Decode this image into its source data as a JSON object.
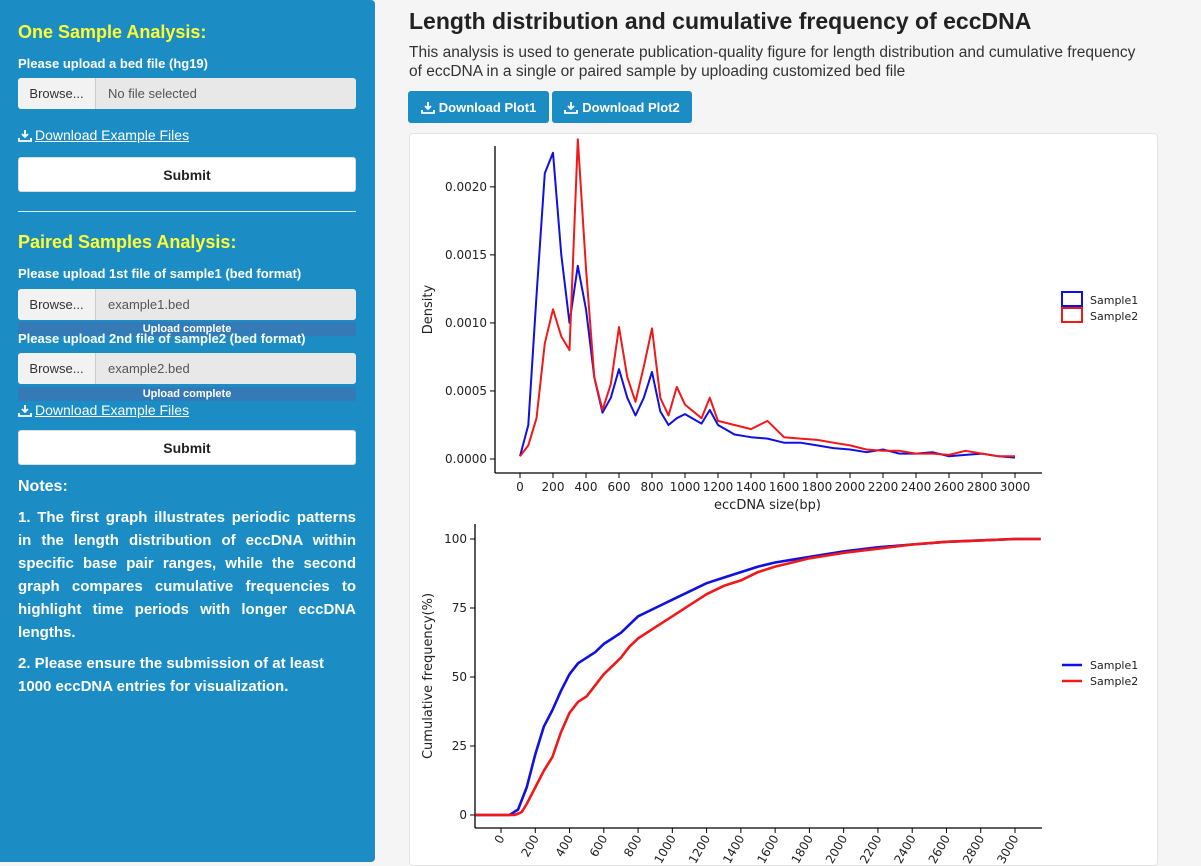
{
  "sidebar": {
    "one_sample": {
      "title": "One Sample Analysis:",
      "upload_label": "Please upload a bed file (hg19)",
      "browse_label": "Browse...",
      "file_placeholder": "No file selected",
      "download_example": "Download Example Files",
      "submit_label": "Submit"
    },
    "paired": {
      "title": "Paired Samples Analysis:",
      "upload1_label": "Please upload 1st file of sample1 (bed format)",
      "browse1_label": "Browse...",
      "file1_value": "example1.bed",
      "progress1": "Upload complete",
      "upload2_label": "Please upload 2nd file of sample2 (bed format)",
      "browse2_label": "Browse...",
      "file2_value": "example2.bed",
      "progress2": "Upload complete",
      "download_example": "Download Example Files",
      "submit_label": "Submit"
    },
    "notes": {
      "title": "Notes:",
      "note1": "1. The first graph illustrates periodic patterns in the length distribution of eccDNA within specific base pair ranges, while the second graph compares cumulative frequencies to highlight time periods with longer eccDNA lengths.",
      "note2": "2. Please ensure the submission of at least 1000 eccDNA entries for visualization."
    }
  },
  "main": {
    "title": "Length distribution and cumulative frequency of eccDNA",
    "description": "This analysis is used to generate publication-quality figure for length distribution and cumulative frequency of eccDNA in a single or paired sample by uploading customized bed file",
    "download_plot1": "Download Plot1",
    "download_plot2": "Download Plot2"
  },
  "colors": {
    "sample1": "#1010e0",
    "sample2": "#f01818",
    "sidebar": "#1b8dc4",
    "section_title": "#ffff33"
  },
  "chart_data": [
    {
      "type": "line",
      "xlabel": "eccDNA size(bp)",
      "ylabel": "Density",
      "xlim": [
        0,
        3000
      ],
      "ylim": [
        0,
        0.0023
      ],
      "x_ticks": [
        "0",
        "200",
        "400",
        "600",
        "800",
        "1000",
        "1200",
        "1400",
        "1600",
        "1800",
        "2000",
        "2200",
        "2400",
        "2600",
        "2800",
        "3000"
      ],
      "y_ticks": [
        "0.0000",
        "0.0005",
        "0.0010",
        "0.0015",
        "0.0020"
      ],
      "legend_style": "box",
      "legend_position": "right",
      "series": [
        {
          "name": "Sample1",
          "x": [
            0,
            50,
            100,
            150,
            200,
            250,
            300,
            350,
            400,
            450,
            500,
            550,
            600,
            650,
            700,
            750,
            800,
            850,
            900,
            950,
            1000,
            1100,
            1150,
            1200,
            1300,
            1400,
            1500,
            1600,
            1700,
            1800,
            1900,
            2000,
            2100,
            2200,
            2300,
            2400,
            2500,
            2600,
            2700,
            2800,
            2900,
            3000
          ],
          "y": [
            2e-05,
            0.00025,
            0.0012,
            0.0021,
            0.00225,
            0.0015,
            0.001,
            0.00142,
            0.0011,
            0.0006,
            0.00034,
            0.00045,
            0.00066,
            0.00045,
            0.00032,
            0.00045,
            0.00064,
            0.00035,
            0.00025,
            0.0003,
            0.00033,
            0.00026,
            0.00036,
            0.00025,
            0.00018,
            0.00016,
            0.00015,
            0.00012,
            0.00012,
            0.0001,
            8e-05,
            7e-05,
            5e-05,
            7e-05,
            4e-05,
            4e-05,
            5e-05,
            2e-05,
            3e-05,
            4e-05,
            2e-05,
            1e-05
          ]
        },
        {
          "name": "Sample2",
          "x": [
            0,
            50,
            100,
            150,
            200,
            250,
            300,
            350,
            400,
            450,
            500,
            550,
            600,
            650,
            700,
            750,
            800,
            850,
            900,
            950,
            1000,
            1100,
            1150,
            1200,
            1300,
            1400,
            1500,
            1600,
            1700,
            1800,
            1900,
            2000,
            2100,
            2200,
            2300,
            2400,
            2500,
            2600,
            2700,
            2800,
            2900,
            3000
          ],
          "y": [
            2e-05,
            0.0001,
            0.0003,
            0.00085,
            0.0011,
            0.0009,
            0.0008,
            0.00235,
            0.0014,
            0.0006,
            0.00036,
            0.00055,
            0.00097,
            0.0006,
            0.00042,
            0.00068,
            0.00096,
            0.00045,
            0.00032,
            0.00053,
            0.0004,
            0.0003,
            0.00045,
            0.00028,
            0.00025,
            0.00022,
            0.00028,
            0.00016,
            0.00015,
            0.00014,
            0.00012,
            0.0001,
            7e-05,
            6e-05,
            6e-05,
            4e-05,
            4e-05,
            3e-05,
            6e-05,
            4e-05,
            2e-05,
            2e-05
          ]
        }
      ]
    },
    {
      "type": "line",
      "xlabel": "",
      "ylabel": "Cumulative frequency(%)",
      "xlim": [
        -150,
        3150
      ],
      "ylim": [
        0,
        100
      ],
      "x_ticks": [
        "0",
        "200",
        "400",
        "600",
        "800",
        "1000",
        "1200",
        "1400",
        "1600",
        "1800",
        "2000",
        "2200",
        "2400",
        "2600",
        "2800",
        "3000"
      ],
      "y_ticks": [
        "0",
        "25",
        "50",
        "75",
        "100"
      ],
      "legend_style": "line",
      "legend_position": "right",
      "series": [
        {
          "name": "Sample1",
          "x": [
            -150,
            50,
            100,
            150,
            200,
            250,
            300,
            350,
            400,
            450,
            500,
            550,
            600,
            650,
            700,
            750,
            800,
            900,
            1000,
            1100,
            1200,
            1300,
            1400,
            1500,
            1600,
            1700,
            1800,
            1900,
            2000,
            2200,
            2400,
            2600,
            2800,
            3000,
            3150
          ],
          "y": [
            0,
            0,
            2,
            10,
            22,
            32,
            38,
            45,
            51,
            55,
            57,
            59,
            62,
            64,
            66,
            69,
            72,
            75,
            78,
            81,
            84,
            86,
            88,
            90,
            91.5,
            92.5,
            93.5,
            94.5,
            95.5,
            97,
            98,
            99,
            99.5,
            100,
            100
          ]
        },
        {
          "name": "Sample2",
          "x": [
            -150,
            80,
            120,
            150,
            200,
            250,
            300,
            350,
            400,
            450,
            500,
            550,
            600,
            650,
            700,
            750,
            800,
            900,
            1000,
            1100,
            1200,
            1300,
            1400,
            1500,
            1600,
            1700,
            1800,
            1900,
            2000,
            2200,
            2400,
            2600,
            2800,
            3000,
            3150
          ],
          "y": [
            0,
            0,
            1,
            4,
            10,
            16,
            21,
            30,
            37,
            41,
            43,
            47,
            51,
            54,
            57,
            61,
            64,
            68,
            72,
            76,
            80,
            83,
            85,
            88,
            90,
            91.5,
            93,
            94,
            95,
            96.5,
            98,
            99,
            99.5,
            100,
            100
          ]
        }
      ]
    }
  ]
}
